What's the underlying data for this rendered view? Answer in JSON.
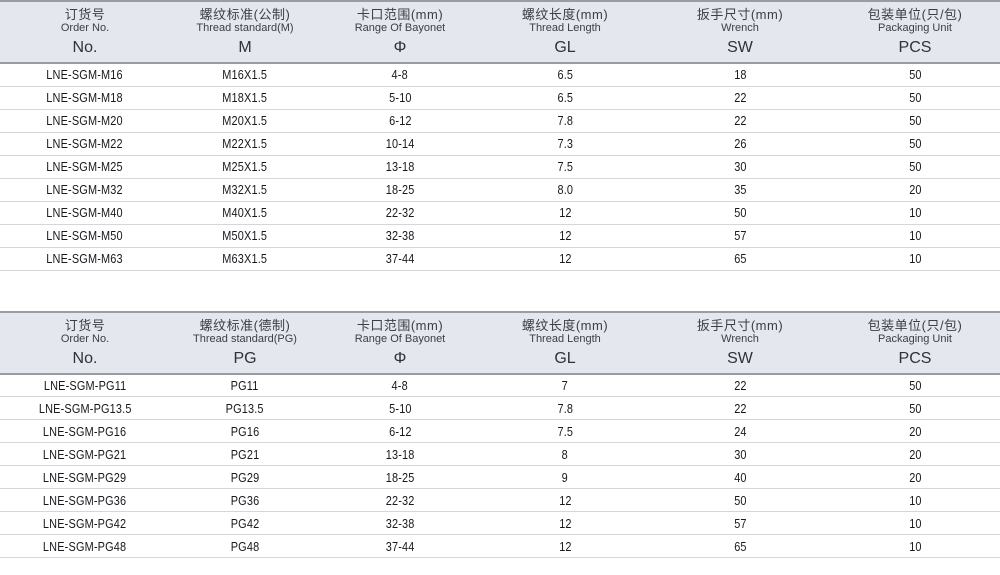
{
  "colors": {
    "header_bg": "#e4e7ed",
    "border_strong": "#979da5",
    "row_divider": "#d3d6da",
    "header_text": "#3b4046",
    "body_text": "#17191d",
    "page_bg": "#ffffff"
  },
  "tables": [
    {
      "id": "metric-thread-table",
      "columns": [
        {
          "cn": "订货号",
          "en": "Order No.",
          "code": "No."
        },
        {
          "cn": "螺纹标准(公制)",
          "en": "Thread standard(M)",
          "code": "M"
        },
        {
          "cn": "卡口范围(mm)",
          "en": "Range Of Bayonet",
          "code": "Φ"
        },
        {
          "cn": "螺纹长度(mm)",
          "en": "Thread Length",
          "code": "GL"
        },
        {
          "cn": "扳手尺寸(mm)",
          "en": "Wrench",
          "code": "SW"
        },
        {
          "cn": "包装单位(只/包)",
          "en": "Packaging Unit",
          "code": "PCS"
        }
      ],
      "rows": [
        [
          "LNE-SGM-M16",
          "M16X1.5",
          "4-8",
          "6.5",
          "18",
          "50"
        ],
        [
          "LNE-SGM-M18",
          "M18X1.5",
          "5-10",
          "6.5",
          "22",
          "50"
        ],
        [
          "LNE-SGM-M20",
          "M20X1.5",
          "6-12",
          "7.8",
          "22",
          "50"
        ],
        [
          "LNE-SGM-M22",
          "M22X1.5",
          "10-14",
          "7.3",
          "26",
          "50"
        ],
        [
          "LNE-SGM-M25",
          "M25X1.5",
          "13-18",
          "7.5",
          "30",
          "50"
        ],
        [
          "LNE-SGM-M32",
          "M32X1.5",
          "18-25",
          "8.0",
          "35",
          "20"
        ],
        [
          "LNE-SGM-M40",
          "M40X1.5",
          "22-32",
          "12",
          "50",
          "10"
        ],
        [
          "LNE-SGM-M50",
          "M50X1.5",
          "32-38",
          "12",
          "57",
          "10"
        ],
        [
          "LNE-SGM-M63",
          "M63X1.5",
          "37-44",
          "12",
          "65",
          "10"
        ]
      ]
    },
    {
      "id": "pg-thread-table",
      "columns": [
        {
          "cn": "订货号",
          "en": "Order No.",
          "code": "No."
        },
        {
          "cn": "螺纹标准(德制)",
          "en": "Thread standard(PG)",
          "code": "PG"
        },
        {
          "cn": "卡口范围(mm)",
          "en": "Range Of Bayonet",
          "code": "Φ"
        },
        {
          "cn": "螺纹长度(mm)",
          "en": "Thread Length",
          "code": "GL"
        },
        {
          "cn": "扳手尺寸(mm)",
          "en": "Wrench",
          "code": "SW"
        },
        {
          "cn": "包装单位(只/包)",
          "en": "Packaging Unit",
          "code": "PCS"
        }
      ],
      "rows": [
        [
          "LNE-SGM-PG11",
          "PG11",
          "4-8",
          "7",
          "22",
          "50"
        ],
        [
          "LNE-SGM-PG13.5",
          "PG13.5",
          "5-10",
          "7.8",
          "22",
          "50"
        ],
        [
          "LNE-SGM-PG16",
          "PG16",
          "6-12",
          "7.5",
          "24",
          "20"
        ],
        [
          "LNE-SGM-PG21",
          "PG21",
          "13-18",
          "8",
          "30",
          "20"
        ],
        [
          "LNE-SGM-PG29",
          "PG29",
          "18-25",
          "9",
          "40",
          "20"
        ],
        [
          "LNE-SGM-PG36",
          "PG36",
          "22-32",
          "12",
          "50",
          "10"
        ],
        [
          "LNE-SGM-PG42",
          "PG42",
          "32-38",
          "12",
          "57",
          "10"
        ],
        [
          "LNE-SGM-PG48",
          "PG48",
          "37-44",
          "12",
          "65",
          "10"
        ]
      ]
    }
  ]
}
